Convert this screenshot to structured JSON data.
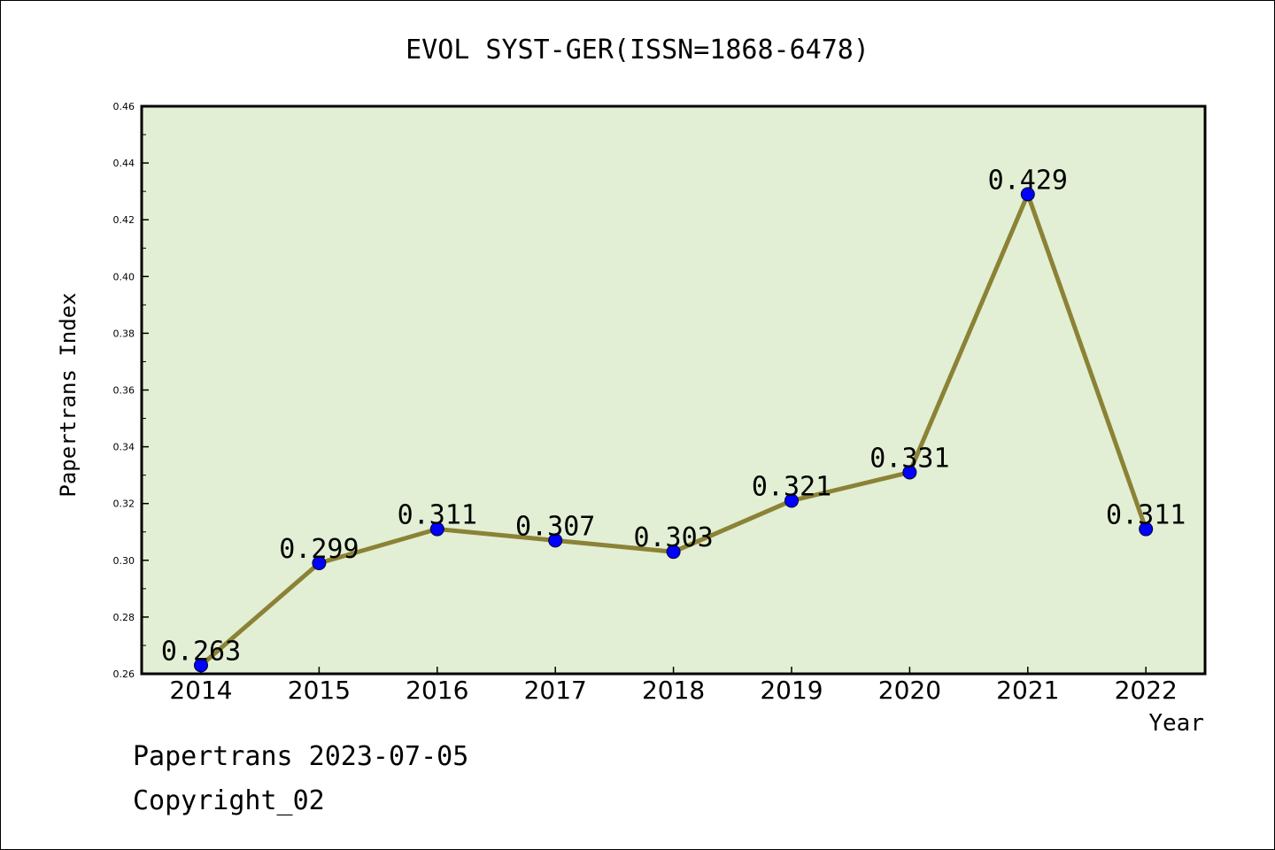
{
  "chart_data": {
    "type": "line",
    "title": "EVOL SYST-GER(ISSN=1868-6478)",
    "xlabel": "Year",
    "ylabel": "Papertrans Index",
    "categories": [
      "2014",
      "2015",
      "2016",
      "2017",
      "2018",
      "2019",
      "2020",
      "2021",
      "2022"
    ],
    "series": [
      {
        "values": [
          0.263,
          0.299,
          0.311,
          0.307,
          0.303,
          0.321,
          0.331,
          0.429,
          0.311
        ]
      }
    ],
    "data_labels": [
      "0.263",
      "0.299",
      "0.311",
      "0.307",
      "0.303",
      "0.321",
      "0.331",
      "0.429",
      "0.311"
    ],
    "ylim": [
      0.26,
      0.46
    ],
    "yticks": [
      "0.26",
      "0.28",
      "0.30",
      "0.32",
      "0.34",
      "0.36",
      "0.38",
      "0.40",
      "0.42",
      "0.44",
      "0.46"
    ],
    "grid": false,
    "legend": "none",
    "colors": {
      "plot_background": "#e2efd4",
      "line": "#8b8236",
      "marker": "#0000ff"
    }
  },
  "footer": {
    "date_line": "Papertrans 2023-07-05",
    "copyright": "Copyright_02"
  }
}
